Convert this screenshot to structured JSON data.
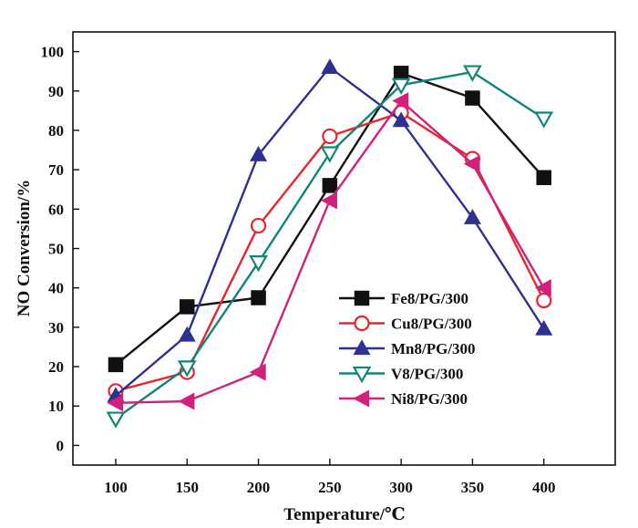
{
  "chart_data": {
    "type": "line",
    "title": "",
    "xlabel": "Temperature/℃",
    "ylabel": "NO Conversion/%",
    "xlim": [
      70,
      450
    ],
    "ylim": [
      -5,
      105
    ],
    "xticks": [
      100,
      150,
      200,
      250,
      300,
      350,
      400
    ],
    "yticks": [
      0,
      10,
      20,
      30,
      40,
      50,
      60,
      70,
      80,
      90,
      100
    ],
    "grid": false,
    "legend_position": "center-right",
    "x": [
      100,
      150,
      200,
      250,
      300,
      350,
      400
    ],
    "series": [
      {
        "name": "Fe8/PG/300",
        "color": "#111111",
        "marker": "square",
        "fill": "filled",
        "values": [
          20.5,
          35.2,
          37.5,
          66.0,
          94.5,
          88.2,
          68.0
        ]
      },
      {
        "name": "Cu8/PG/300",
        "color": "#e8262b",
        "marker": "circle",
        "fill": "open",
        "values": [
          13.8,
          18.6,
          55.8,
          78.5,
          84.5,
          72.8,
          36.8
        ]
      },
      {
        "name": "Mn8/PG/300",
        "color": "#2e3192",
        "marker": "triangle-up",
        "fill": "filled",
        "values": [
          12.6,
          28.0,
          73.8,
          96.0,
          82.5,
          57.8,
          29.6
        ]
      },
      {
        "name": "V8/PG/300",
        "color": "#12857a",
        "marker": "triangle-down",
        "fill": "open",
        "values": [
          6.8,
          19.8,
          46.5,
          74.2,
          91.5,
          94.8,
          83.0
        ]
      },
      {
        "name": "Ni8/PG/300",
        "color": "#d1217c",
        "marker": "triangle-left",
        "fill": "filled",
        "values": [
          10.8,
          11.2,
          18.6,
          62.2,
          87.5,
          71.5,
          40.0
        ]
      }
    ]
  }
}
